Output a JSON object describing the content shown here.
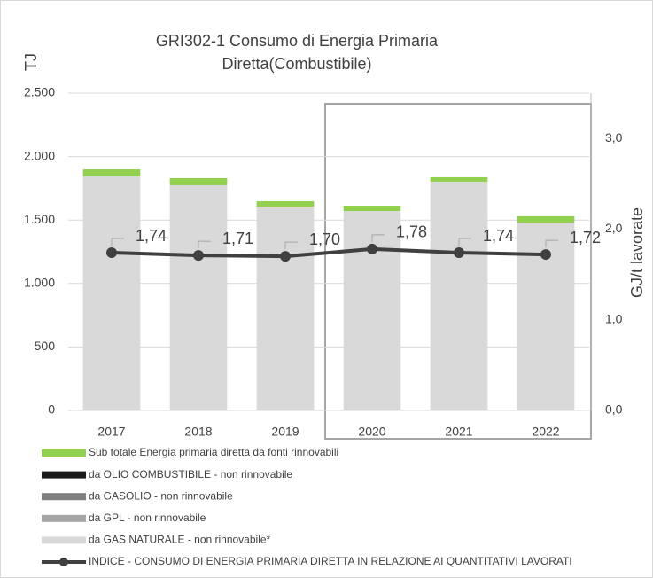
{
  "chart_data": {
    "type": "bar",
    "stacked": true,
    "title": [
      "GRI302-1 Consumo di Energia Primaria",
      "Diretta(Combustibile)"
    ],
    "y_label": "TJ",
    "y2_label": "GJ/t lavorate",
    "categories": [
      "2017",
      "2018",
      "2019",
      "2020",
      "2021",
      "2022"
    ],
    "series": [
      {
        "name": "Sub totale Energia primaria diretta da fonti rinnovabili",
        "color": "#92d050",
        "values": [
          55,
          56,
          42,
          42,
          35,
          50
        ]
      },
      {
        "name": "da OLIO COMBUSTIBILE - non rinnovabile",
        "color": "#1a1a1a",
        "values": [
          0,
          0,
          0,
          0,
          0,
          0
        ]
      },
      {
        "name": "da GASOLIO - non rinnovabile",
        "color": "#7f7f7f",
        "values": [
          0,
          0,
          0,
          0,
          0,
          0
        ]
      },
      {
        "name": "da  GPL - non rinnovabile",
        "color": "#a6a6a6",
        "values": [
          0,
          0,
          0,
          0,
          0,
          0
        ]
      },
      {
        "name": "da GAS NATURALE - non rinnovabile*",
        "color": "#d9d9d9",
        "values": [
          1844,
          1774,
          1606,
          1571,
          1802,
          1480
        ]
      },
      {
        "name": "INDICE - CONSUMO DI ENERGIA PRIMARIA DIRETTA IN RELAZIONE AI QUANTITATIVI LAVORATI",
        "color": "#404040",
        "type": "line",
        "axis": "y2",
        "values": [
          1.74,
          1.71,
          1.7,
          1.78,
          1.74,
          1.72
        ],
        "value_labels": [
          "1,74",
          "1,71",
          "1,70",
          "1,78",
          "1,74",
          "1,72"
        ]
      }
    ],
    "ylim": [
      0,
      2500
    ],
    "yticks": [
      0,
      500,
      {
        "value": 1000,
        "label": "1.000"
      },
      {
        "value": 1500,
        "label": "1.500"
      },
      {
        "value": 2000,
        "label": "2.000"
      },
      {
        "value": 2500,
        "label": "2.500"
      }
    ],
    "y2lim": [
      0,
      3.5
    ],
    "y2ticks": [
      {
        "value": 0,
        "label": "0,0"
      },
      {
        "value": 1,
        "label": "1,0"
      },
      {
        "value": 2,
        "label": "2,0"
      },
      {
        "value": 3,
        "label": "3,0"
      }
    ],
    "grid": true
  }
}
